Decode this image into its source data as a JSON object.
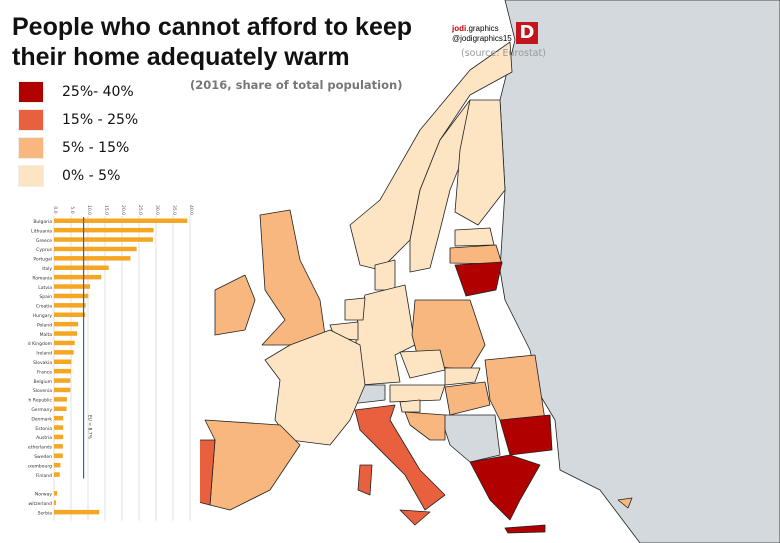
{
  "title": "People who cannot afford to keep their home adequately warm",
  "title_lines": [
    "People who cannot afford to keep",
    "their home adequately warm"
  ],
  "subtitle": "(2016, share of total population)",
  "brand": {
    "name_bold": "jodi",
    "name_rest": ".graphics",
    "handle": "@jodigraphics15",
    "logo_letter": "D",
    "source": "(source: Eurostat)"
  },
  "legend": [
    {
      "label": "25%- 40%",
      "color": "#b00000"
    },
    {
      "label": "15% - 25%",
      "color": "#e8603e"
    },
    {
      "label": "5% - 15%",
      "color": "#f8b77f"
    },
    {
      "label": "0% - 5%",
      "color": "#fde5c4"
    }
  ],
  "colors": {
    "sea": "#ffffff",
    "non_eu": "#d3d9dd",
    "bar": "#f5a623",
    "eu_line": "#2a63b0"
  },
  "chart_data": {
    "type": "bar",
    "orientation": "horizontal",
    "xlim": [
      0,
      40
    ],
    "ticks": [
      "0.0",
      "5.0",
      "10.0",
      "15.0",
      "20.0",
      "25.0",
      "30.0",
      "35.0",
      "40.0"
    ],
    "categories": [
      "Bulgaria",
      "Lithuania",
      "Greece",
      "Cyprus",
      "Portugal",
      "Italy",
      "Romania",
      "Latvia",
      "Spain",
      "Croatia",
      "Hungary",
      "Poland",
      "Malta",
      "United Kingdom",
      "Ireland",
      "Slovakia",
      "France",
      "Belgium",
      "Slovenia",
      "Czech Republic",
      "Germany",
      "Denmark",
      "Estonia",
      "Austria",
      "Netherlands",
      "Sweden",
      "Luxembourg",
      "Finland",
      "",
      "Norway",
      "Switzerland",
      "Serbia"
    ],
    "values": [
      39.2,
      29.3,
      29.1,
      24.3,
      22.5,
      16.1,
      13.9,
      10.6,
      10.1,
      9.3,
      9.2,
      7.1,
      6.8,
      6.1,
      5.8,
      5.1,
      5.0,
      4.8,
      4.8,
      3.8,
      3.7,
      2.7,
      2.7,
      2.7,
      2.6,
      2.6,
      1.9,
      1.7,
      null,
      0.9,
      0.6,
      13.3
    ],
    "reference": {
      "label": "EU = 8.7%",
      "value": 8.7
    }
  }
}
